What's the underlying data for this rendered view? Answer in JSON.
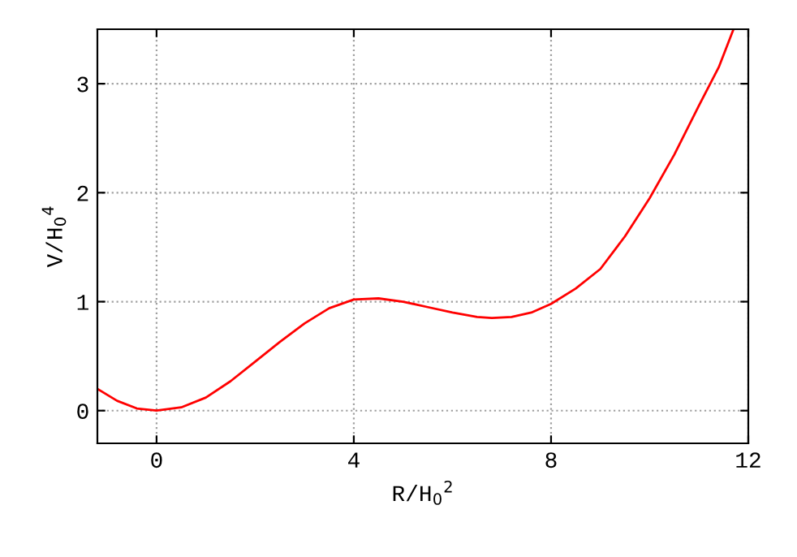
{
  "chart_data": {
    "type": "line",
    "xlabel": "R/H$_{0}$$^{2}$",
    "ylabel": "V/H$_{0}$$^{4}$",
    "x": [
      -1.2,
      -0.8,
      -0.4,
      0,
      0.5,
      1,
      1.5,
      2,
      2.5,
      3,
      3.5,
      4,
      4.5,
      5,
      5.5,
      6,
      6.5,
      6.8,
      7.2,
      7.6,
      8,
      8.5,
      9,
      9.5,
      10,
      10.5,
      11,
      11.4,
      11.7
    ],
    "series": [
      {
        "color": "#ff0000",
        "values": [
          0.2,
          0.09,
          0.02,
          0,
          0.03,
          0.12,
          0.27,
          0.45,
          0.63,
          0.8,
          0.94,
          1.02,
          1.03,
          1.0,
          0.95,
          0.9,
          0.86,
          0.85,
          0.86,
          0.9,
          0.98,
          1.12,
          1.3,
          1.6,
          1.95,
          2.35,
          2.8,
          3.15,
          3.5
        ]
      }
    ],
    "xlim": [
      -1.2,
      12
    ],
    "ylim": [
      -0.3,
      3.5
    ],
    "xticks": [
      0,
      4,
      8,
      12
    ],
    "yticks": [
      0,
      1,
      2,
      3
    ],
    "grid": true,
    "line_style": "solid",
    "marker": "none"
  }
}
